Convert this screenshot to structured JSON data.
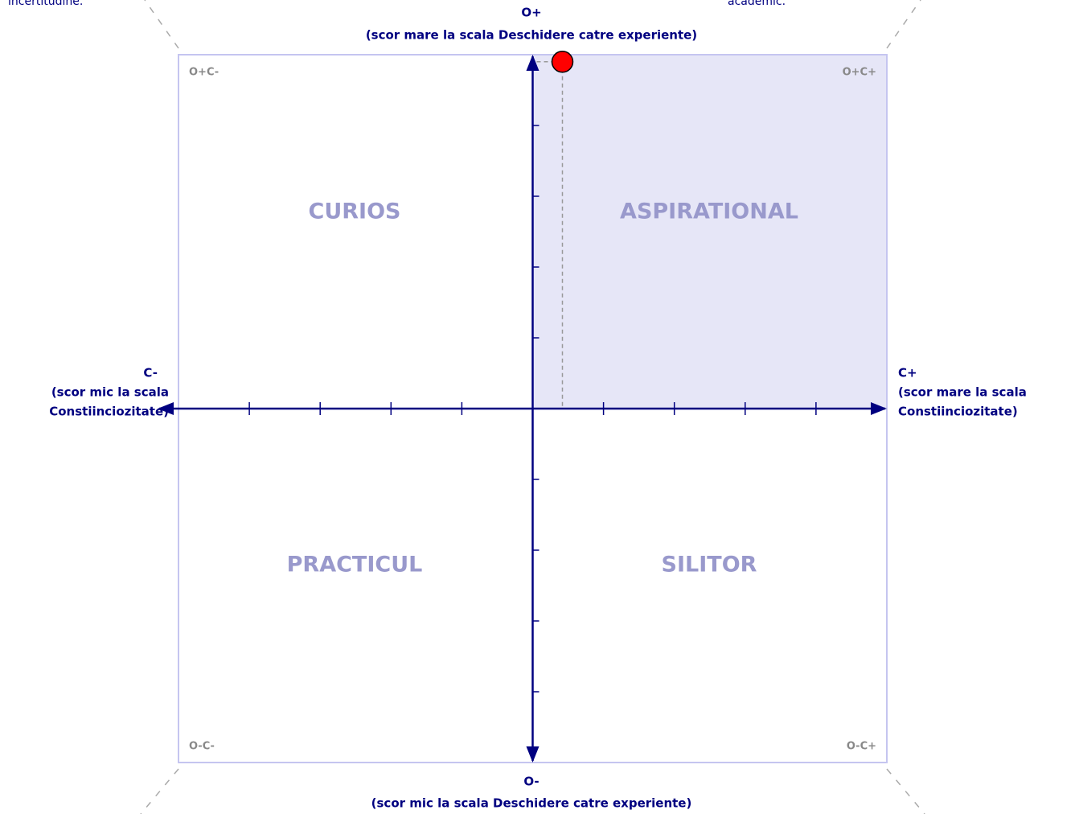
{
  "chart_data": {
    "type": "scatter",
    "fragments": [
      "incertitudine.",
      "academic."
    ],
    "top_label": "O+",
    "top_sublabel": "(scor mare la scala Deschidere catre experiente)",
    "bottom_label": "O-",
    "bottom_sublabel": "(scor mic la scala Deschidere catre experiente)",
    "left_label": [
      "C-",
      "(scor mic la scala",
      "Constiinciozitate)"
    ],
    "right_label": [
      "C+",
      "(scor mare la scala",
      "Constiinciozitate)"
    ],
    "quadrants": [
      "CURIOS",
      "ASPIRATIONAL",
      "PRACTICUL",
      "SILITOR"
    ],
    "corners": [
      "O+C-",
      "O+C+",
      "O-C-",
      "O-C+"
    ],
    "x": [
      0.42
    ],
    "values": [
      4.9
    ],
    "color": "#ff0000",
    "xlim": [
      -5,
      5
    ],
    "ylim": [
      -5,
      5
    ],
    "xticks": [
      -4,
      -3,
      -2,
      -1,
      1,
      2,
      3,
      4
    ],
    "yticks": [
      -4,
      -3,
      -2,
      -1,
      1,
      2,
      3,
      4
    ]
  }
}
